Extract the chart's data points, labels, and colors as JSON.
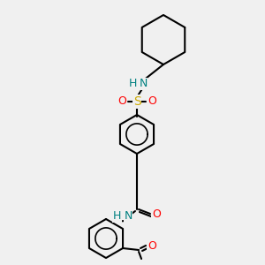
{
  "bg_color": "#f0f0f0",
  "bond_color": "#000000",
  "atom_colors": {
    "N": "#008080",
    "O": "#ff0000",
    "S": "#ccaa00",
    "C": "#000000",
    "H": "#008080"
  },
  "font_size": 9,
  "figsize": [
    3.0,
    3.0
  ],
  "dpi": 100
}
